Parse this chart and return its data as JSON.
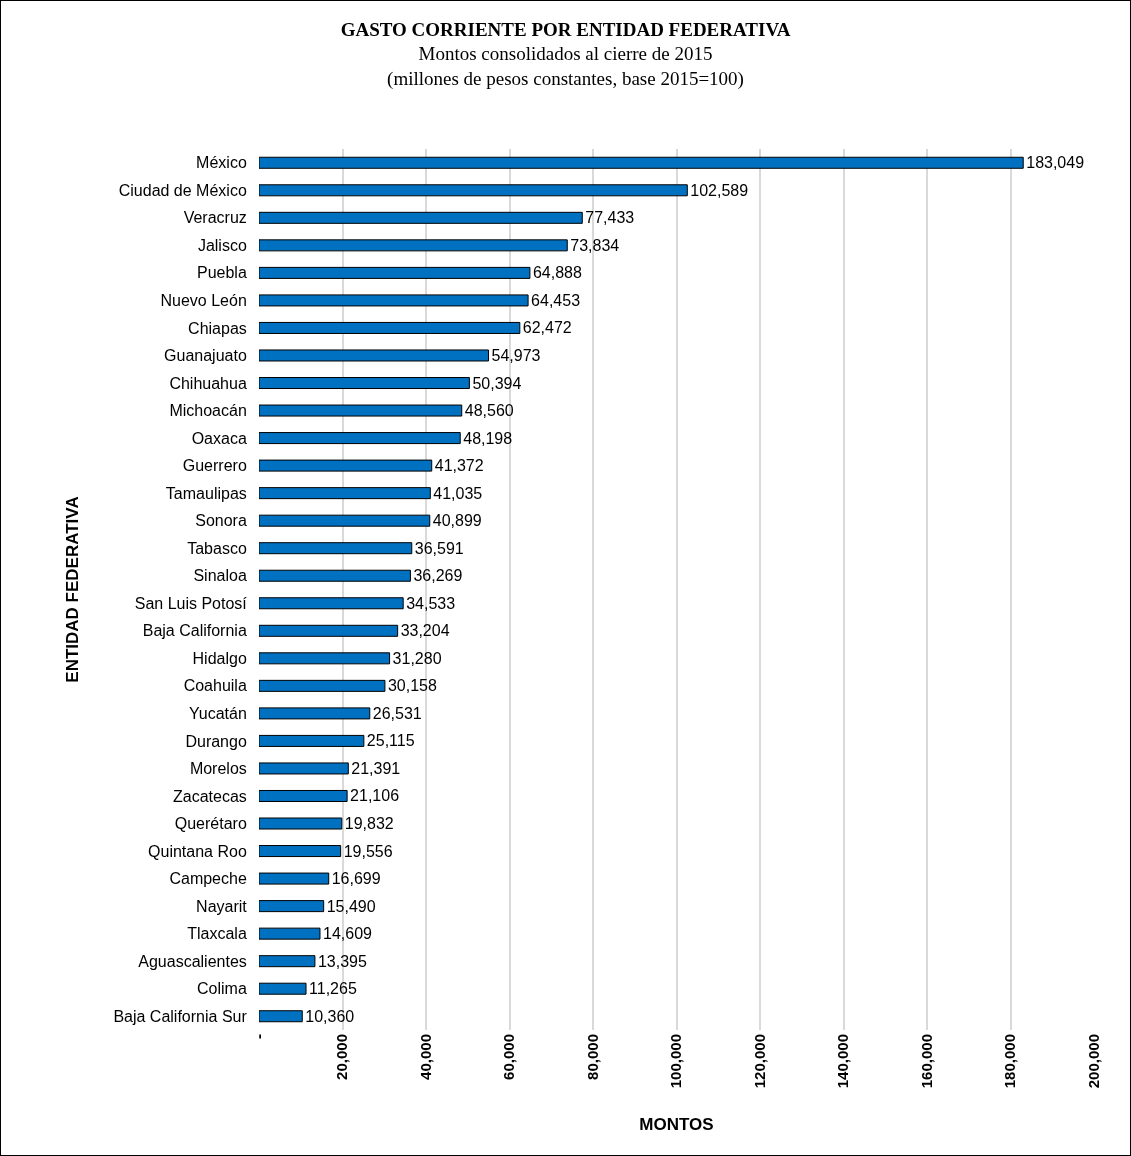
{
  "chart_data": {
    "type": "bar",
    "orientation": "horizontal",
    "title": "GASTO CORRIENTE POR ENTIDAD FEDERATIVA",
    "subtitle": "Montos consolidados al cierre de 2015\n(millones de pesos constantes, base 2015=100)",
    "xlabel": "MONTOS",
    "ylabel": "ENTIDAD FEDERATIVA",
    "categories": [
      "México",
      "Ciudad de México",
      "Veracruz",
      "Jalisco",
      "Puebla",
      "Nuevo León",
      "Chiapas",
      "Guanajuato",
      "Chihuahua",
      "Michoacán",
      "Oaxaca",
      "Guerrero",
      "Tamaulipas",
      "Sonora",
      "Tabasco",
      "Sinaloa",
      "San Luis Potosí",
      "Baja California",
      "Hidalgo",
      "Coahuila",
      "Yucatán",
      "Durango",
      "Morelos",
      "Zacatecas",
      "Querétaro",
      "Quintana Roo",
      "Campeche",
      "Nayarit",
      "Tlaxcala",
      "Aguascalientes",
      "Colima",
      "Baja California Sur"
    ],
    "values": [
      183049,
      102589,
      77433,
      73834,
      64888,
      64453,
      62472,
      54973,
      50394,
      48560,
      48198,
      41372,
      41035,
      40899,
      36591,
      36269,
      34533,
      33204,
      31280,
      30158,
      26531,
      25115,
      21391,
      21106,
      19832,
      19556,
      16699,
      15490,
      14609,
      13395,
      11265,
      10360
    ],
    "value_labels": [
      "183,049",
      "102,589",
      "77,433",
      "73,834",
      "64,888",
      "64,453",
      "62,472",
      "54,973",
      "50,394",
      "48,560",
      "48,198",
      "41,372",
      "41,035",
      "40,899",
      "36,591",
      "36,269",
      "34,533",
      "33,204",
      "31,280",
      "30,158",
      "26,531",
      "25,115",
      "21,391",
      "21,106",
      "19,832",
      "19,556",
      "16,699",
      "15,490",
      "14,609",
      "13,395",
      "11,265",
      "10,360"
    ],
    "color": "#0070c0",
    "xlim": [
      0,
      200000
    ],
    "xticks": [
      {
        "value": 0,
        "label": "-"
      },
      {
        "value": 20000,
        "label": "20,000"
      },
      {
        "value": 40000,
        "label": "40,000"
      },
      {
        "value": 60000,
        "label": "60,000"
      },
      {
        "value": 80000,
        "label": "80,000"
      },
      {
        "value": 100000,
        "label": "100,000"
      },
      {
        "value": 120000,
        "label": "120,000"
      },
      {
        "value": 140000,
        "label": "140,000"
      },
      {
        "value": 160000,
        "label": "160,000"
      },
      {
        "value": 180000,
        "label": "180,000"
      },
      {
        "value": 200000,
        "label": "200,000"
      }
    ],
    "grid": "x",
    "legend": false
  }
}
